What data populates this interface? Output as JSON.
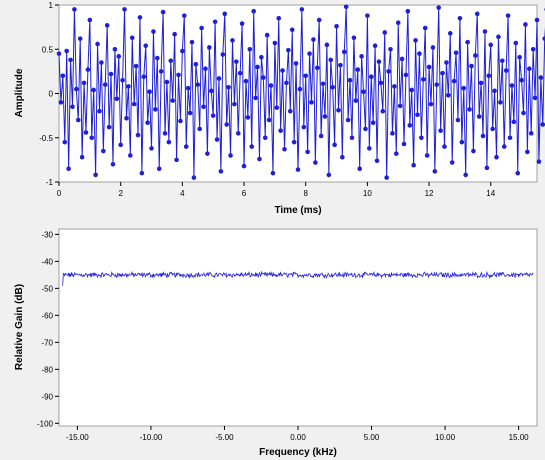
{
  "chart_data": [
    {
      "type": "scatter",
      "title": "",
      "xlabel": "Time (ms)",
      "ylabel": "Amplitude",
      "xlim": [
        0,
        15.5
      ],
      "ylim": [
        -1,
        1
      ],
      "xticks": [
        0,
        2,
        4,
        6,
        8,
        10,
        12,
        14
      ],
      "xtick_labels": [
        "0",
        "2",
        "4",
        "6",
        "8",
        "10",
        "12",
        "14"
      ],
      "yticks": [
        1,
        0.5,
        0,
        -0.5,
        -1
      ],
      "ytick_labels": [
        "1",
        "0.5",
        "0",
        "-0.5",
        "-1"
      ],
      "x_start": 0.0,
      "x_step": 0.0625,
      "y": [
        0.45,
        -0.1,
        0.2,
        -0.55,
        0.48,
        -0.85,
        0.38,
        -0.15,
        0.95,
        0.05,
        -0.3,
        0.62,
        -0.72,
        0.12,
        -0.44,
        0.27,
        0.83,
        -0.5,
        0.04,
        -0.92,
        0.56,
        -0.2,
        0.35,
        -0.65,
        0.1,
        0.77,
        -0.38,
        0.22,
        -0.8,
        0.5,
        -0.06,
        0.42,
        -0.58,
        0.15,
        0.95,
        -0.28,
        0.08,
        -0.7,
        0.63,
        -0.12,
        0.31,
        -0.47,
        0.86,
        -0.9,
        0.19,
        0.54,
        -0.33,
        0.02,
        -0.62,
        0.7,
        -0.18,
        0.4,
        -0.85,
        0.25,
        0.92,
        -0.45,
        0.13,
        -0.55,
        0.37,
        -0.08,
        0.67,
        -0.75,
        0.21,
        -0.31,
        0.48,
        0.88,
        -0.6,
        0.06,
        -0.22,
        0.58,
        -0.95,
        0.33,
        0.1,
        -0.4,
        0.74,
        -0.15,
        0.28,
        -0.68,
        0.52,
        0.03,
        -0.25,
        0.81,
        -0.52,
        0.17,
        -0.88,
        0.44,
        0.9,
        -0.35,
        0.07,
        -0.7,
        0.6,
        -0.12,
        0.36,
        -0.45,
        0.23,
        0.79,
        -0.82,
        0.14,
        -0.27,
        0.5,
        -0.6,
        0.93,
        -0.05,
        0.3,
        -0.74,
        0.41,
        0.18,
        -0.5,
        0.66,
        -0.3,
        0.09,
        -0.9,
        0.57,
        -0.16,
        0.85,
        -0.42,
        0.26,
        -0.63,
        0.12,
        0.49,
        -0.2,
        0.72,
        -0.55,
        0.34,
        -0.86,
        0.05,
        0.95,
        -0.38,
        0.2,
        -0.66,
        0.45,
        -0.1,
        0.61,
        -0.78,
        0.29,
        0.83,
        -0.48,
        0.11,
        -0.26,
        0.55,
        -0.92,
        0.38,
        0.07,
        -0.58,
        0.76,
        -0.19,
        0.32,
        -0.72,
        0.47,
        0.98,
        -0.3,
        0.15,
        -0.5,
        0.63,
        -0.08,
        0.27,
        -0.85,
        0.42,
        0.02,
        -0.4,
        0.88,
        -0.62,
        0.19,
        -0.33,
        0.54,
        -0.76,
        0.36,
        0.12,
        -0.2,
        0.69,
        -0.95,
        0.25,
        0.5,
        -0.45,
        0.08,
        -0.68,
        0.8,
        -0.14,
        0.39,
        -0.57,
        0.21,
        0.93,
        -0.36,
        0.04,
        -0.81,
        0.6,
        -0.24,
        0.45,
        -0.5,
        0.16,
        0.74,
        -0.7,
        0.3,
        -0.12,
        0.52,
        -0.88,
        0.1,
        0.97,
        -0.42,
        0.23,
        -0.6,
        0.35,
        -0.02,
        0.68,
        -0.78,
        0.14,
        0.46,
        -0.3,
        0.85,
        -0.55,
        0.06,
        -0.92,
        0.58,
        -0.18,
        0.31,
        -0.65,
        0.43,
        0.9,
        -0.26,
        0.12,
        -0.48,
        0.7,
        -0.84,
        0.2,
        0.55,
        -0.4,
        0.03,
        -0.72,
        0.64,
        -0.1,
        0.37,
        -0.6,
        0.26,
        0.88,
        -0.5,
        0.09,
        -0.32,
        0.57,
        -0.9,
        0.41,
        0.15,
        -0.22,
        0.78,
        -0.66,
        0.28,
        -0.45,
        0.5,
        -0.05,
        0.83,
        -0.77,
        0.18,
        -0.35,
        0.62,
        0.95,
        -0.58,
        0.07,
        -0.85,
        0.44,
        -0.15,
        0.33,
        -0.52,
        0.24,
        0.72,
        -0.4,
        0.11,
        -0.7,
        0.56,
        -0.28,
        0.91,
        -0.6,
        0.19,
        -0.12,
        0.48,
        -0.94,
        0.36,
        0.05,
        -0.5,
        0.81,
        -0.2,
        0.4,
        -0.75,
        0.3,
        0.66,
        -0.36,
        0.13,
        -0.62,
        0.53,
        -0.08,
        0.87,
        -0.48,
        0.22,
        -0.88,
        0.59,
        -0.3,
        0.43,
        -0.57,
        0.16,
        0.96,
        -0.42,
        0.09,
        -0.7,
        0.61,
        -0.14,
        0.34,
        -0.8,
        0.47,
        0.75,
        -0.25,
        0.06,
        -0.54,
        0.68,
        -0.92,
        0.27,
        0.5,
        -0.38,
        0.12,
        -0.65,
        0.84,
        -0.18,
        0.38,
        -0.6,
        0.2,
        0.9,
        -0.46,
        0.02,
        -0.83,
        0.55,
        -0.22,
        0.46,
        -0.52,
        0.29,
        0.78,
        -0.72,
        0.1,
        -0.32,
        0.6,
        -0.9,
        0.35,
        0.17,
        -0.28,
        0.73,
        -0.58,
        0.24,
        -0.44,
        0.51,
        0.86,
        -0.66,
        0.14,
        -0.2,
        0.57,
        -0.96,
        0.4,
        0.08,
        -0.5,
        0.8,
        -0.1,
        0.32,
        -0.7,
        0.45,
        0.98,
        -0.35,
        0.18,
        -0.62,
        0.52,
        -0.05,
        0.7,
        -0.82,
        0.26,
        -0.4,
        0.63,
        0.92,
        -0.55,
        0.05,
        -0.28,
        0.48,
        -0.75,
        0.37,
        0.13,
        -0.6,
        0.82,
        -0.16,
        0.3,
        -0.88,
        0.42,
        0.69,
        -0.3,
        0.1,
        -0.52,
        0.58,
        -0.24,
        0.94,
        -0.64,
        0.21,
        -0.36,
        0.5,
        -0.86,
        0.33,
        0.07,
        -0.45,
        0.77,
        -0.2,
        0.4,
        -0.7,
        0.28,
        0.85,
        -0.48,
        0.15,
        -0.9,
        0.56,
        -0.12,
        0.44,
        -0.58,
        0.19,
        0.9,
        -0.38,
        0.03,
        -0.68,
        0.62,
        -0.28,
        0.36,
        -0.8,
        0.5,
        0.72,
        -0.22,
        0.09,
        -0.55,
        0.66,
        -0.94,
        0.3,
        0.47,
        -0.4,
        0.11,
        -0.62,
        0.8,
        -0.15,
        0.35,
        -0.48,
        0.22,
        0.95,
        -0.58,
        0.06,
        -0.76,
        0.54,
        -0.32,
        0.42,
        -0.5,
        0.25,
        0.76,
        -0.7,
        0.12,
        -0.3,
        0.6,
        -0.88,
        0.38,
        0.15,
        -0.25,
        0.7,
        -0.6,
        0.23,
        -0.45,
        0.52,
        0.88,
        -0.62,
        0.1,
        -0.18,
        0.55,
        -0.92,
        0.4,
        0.04,
        -0.5,
        0.84,
        -0.12,
        0.34,
        -0.66,
        0.46,
        0.97,
        -0.4,
        0.16,
        -0.58,
        0.5,
        -0.06,
        0.72,
        -0.8,
        0.28,
        -0.38,
        0.6,
        0.92,
        -0.52,
        0.08,
        -0.3,
        0.46,
        -0.78,
        0.35,
        0.12,
        -0.55,
        0.82
      ]
    },
    {
      "type": "line",
      "title": "",
      "xlabel": "Frequency (kHz)",
      "ylabel": "Relative Gain (dB)",
      "xlim": [
        -16.25,
        16.25
      ],
      "ylim": [
        -101,
        -28
      ],
      "xticks": [
        -15,
        -10,
        -5,
        0,
        5,
        10,
        15
      ],
      "xtick_labels": [
        "-15.00",
        "-10.00",
        "-5.00",
        "0.00",
        "5.00",
        "10.00",
        "15.00"
      ],
      "yticks": [
        -30,
        -40,
        -50,
        -60,
        -70,
        -80,
        -90,
        -100
      ],
      "ytick_labels": [
        "-30",
        "-40",
        "-50",
        "-60",
        "-70",
        "-80",
        "-90",
        "-100"
      ],
      "x_start": -16.0,
      "x_end": 16.0,
      "noise_floor_db": -45,
      "start_value_db": -49
    }
  ],
  "colors": {
    "series": "#1f1fd6",
    "panel_bg": "#ffffff",
    "page_bg": "#f0f0f0",
    "grid": "#c8c8c8"
  }
}
